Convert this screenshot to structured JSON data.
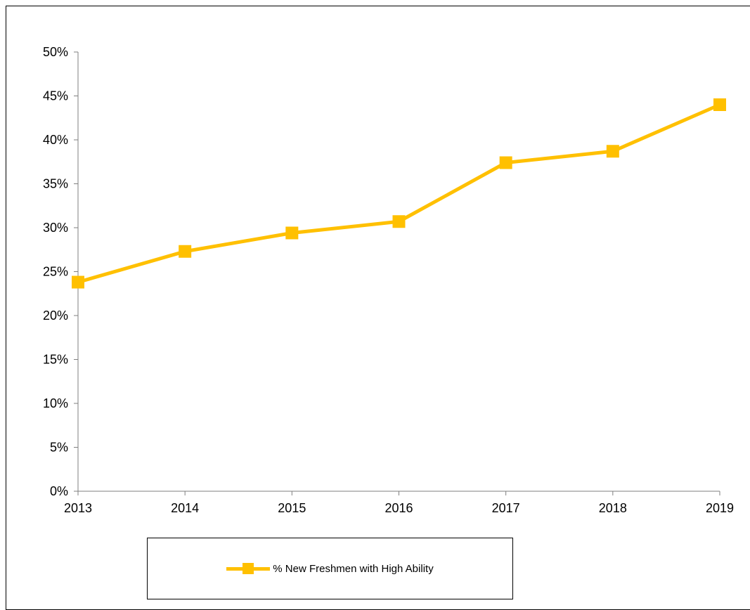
{
  "chart_data": {
    "type": "line",
    "title": "",
    "xlabel": "",
    "ylabel": "",
    "x": [
      "2013",
      "2014",
      "2015",
      "2016",
      "2017",
      "2018",
      "2019"
    ],
    "series": [
      {
        "name": "% New Freshmen with High Ability",
        "values": [
          23.8,
          27.3,
          29.4,
          30.7,
          37.4,
          38.7,
          44.0
        ],
        "color": "#FFC000",
        "marker": "square"
      }
    ],
    "ylim": [
      0,
      50
    ],
    "yticks": [
      "0%",
      "5%",
      "10%",
      "15%",
      "20%",
      "25%",
      "30%",
      "35%",
      "40%",
      "45%",
      "50%"
    ],
    "grid": false,
    "legend_position": "bottom"
  }
}
